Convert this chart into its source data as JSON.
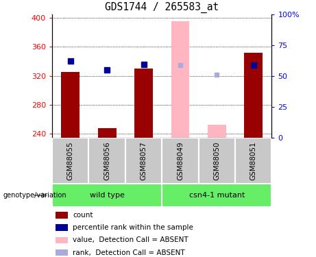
{
  "title": "GDS1744 / 265583_at",
  "samples": [
    "GSM88055",
    "GSM88056",
    "GSM88057",
    "GSM88049",
    "GSM88050",
    "GSM88051"
  ],
  "present_count": [
    325,
    248,
    330,
    null,
    null,
    352
  ],
  "present_rank": [
    340,
    328,
    336,
    null,
    null,
    335
  ],
  "absent_count": [
    null,
    null,
    null,
    395,
    253,
    null
  ],
  "absent_rank": [
    null,
    null,
    null,
    335,
    322,
    null
  ],
  "ylim_left": [
    235,
    405
  ],
  "yticks_left": [
    240,
    280,
    320,
    360,
    400
  ],
  "ylim_right": [
    0,
    100
  ],
  "yticks_right": [
    0,
    25,
    50,
    75,
    100
  ],
  "bar_width": 0.5,
  "bar_color_present": "#990000",
  "bar_color_absent": "#FFB6C1",
  "square_color_present": "#000099",
  "square_color_absent": "#AAAADD",
  "baseline": 235,
  "group1_label": "wild type",
  "group2_label": "csn4-1 mutant",
  "group_color": "#66EE66",
  "sample_label_bg": "#C8C8C8",
  "legend_items": [
    {
      "label": "count",
      "color": "#990000"
    },
    {
      "label": "percentile rank within the sample",
      "color": "#000099"
    },
    {
      "label": "value,  Detection Call = ABSENT",
      "color": "#FFB6C1"
    },
    {
      "label": "rank,  Detection Call = ABSENT",
      "color": "#AAAADD"
    }
  ]
}
